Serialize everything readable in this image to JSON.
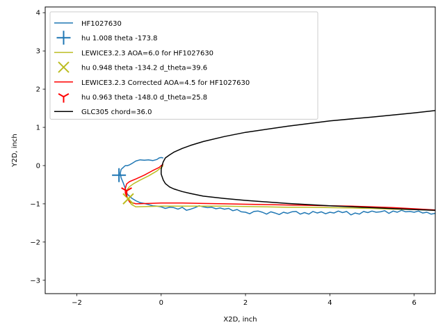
{
  "chart_data": {
    "type": "line",
    "xlabel": "X2D, inch",
    "ylabel": "Y2D, inch",
    "xlim": [
      -2.75,
      6.5
    ],
    "ylim": [
      -3.35,
      4.15
    ],
    "xticks": [
      -2,
      0,
      2,
      4,
      6
    ],
    "yticks": [
      -3,
      -2,
      -1,
      0,
      1,
      2,
      3,
      4
    ],
    "xtick_labels": [
      "−2",
      "0",
      "2",
      "4",
      "6"
    ],
    "ytick_labels": [
      "−3",
      "−2",
      "−1",
      "0",
      "1",
      "2",
      "3",
      "4"
    ],
    "grid": false,
    "legend_position": "top-left",
    "series": [
      {
        "name": "HF1027630",
        "kind": "line",
        "color": "#1f77b4",
        "x": [
          6.5,
          6.4,
          6.3,
          6.2,
          6.1,
          6.0,
          5.9,
          5.8,
          5.7,
          5.6,
          5.5,
          5.4,
          5.3,
          5.2,
          5.1,
          5.0,
          4.9,
          4.8,
          4.7,
          4.6,
          4.5,
          4.4,
          4.3,
          4.2,
          4.1,
          4.0,
          3.9,
          3.8,
          3.7,
          3.6,
          3.5,
          3.4,
          3.3,
          3.2,
          3.1,
          3.0,
          2.9,
          2.8,
          2.7,
          2.6,
          2.5,
          2.4,
          2.3,
          2.2,
          2.1,
          2.0,
          1.9,
          1.8,
          1.7,
          1.6,
          1.5,
          1.4,
          1.3,
          1.2,
          1.1,
          1.0,
          0.9,
          0.8,
          0.7,
          0.6,
          0.5,
          0.4,
          0.3,
          0.2,
          0.1,
          0.0,
          -0.1,
          -0.2,
          -0.3,
          -0.4,
          -0.5,
          -0.6,
          -0.7,
          -0.8,
          -0.85,
          -0.9,
          -0.95,
          -0.97,
          -0.95,
          -0.9,
          -0.85,
          -0.8,
          -0.75,
          -0.7,
          -0.6,
          -0.5,
          -0.4,
          -0.3,
          -0.2,
          -0.1,
          -0.05,
          0.0,
          0.05
        ],
        "y": [
          -1.25,
          -1.27,
          -1.22,
          -1.24,
          -1.19,
          -1.22,
          -1.2,
          -1.21,
          -1.17,
          -1.22,
          -1.19,
          -1.25,
          -1.18,
          -1.21,
          -1.22,
          -1.19,
          -1.23,
          -1.2,
          -1.27,
          -1.24,
          -1.29,
          -1.2,
          -1.23,
          -1.19,
          -1.24,
          -1.22,
          -1.26,
          -1.21,
          -1.24,
          -1.2,
          -1.27,
          -1.23,
          -1.27,
          -1.2,
          -1.21,
          -1.25,
          -1.22,
          -1.28,
          -1.24,
          -1.21,
          -1.27,
          -1.22,
          -1.19,
          -1.2,
          -1.26,
          -1.22,
          -1.21,
          -1.15,
          -1.18,
          -1.12,
          -1.14,
          -1.11,
          -1.13,
          -1.09,
          -1.1,
          -1.08,
          -1.05,
          -1.1,
          -1.14,
          -1.17,
          -1.09,
          -1.14,
          -1.1,
          -1.09,
          -1.12,
          -1.08,
          -1.06,
          -1.05,
          -1.02,
          -0.99,
          -0.97,
          -0.92,
          -0.85,
          -0.75,
          -0.6,
          -0.45,
          -0.32,
          -0.2,
          -0.1,
          -0.05,
          0.0,
          0.0,
          0.02,
          0.05,
          0.12,
          0.15,
          0.14,
          0.15,
          0.13,
          0.16,
          0.2,
          0.21,
          0.2
        ]
      },
      {
        "name": "hu 1.008 theta -173.8",
        "kind": "marker",
        "marker": "plus",
        "color": "#1f77b4",
        "x": [
          -1.0
        ],
        "y": [
          -0.25
        ]
      },
      {
        "name": "LEWICE3.2.3 AOA=6.0 for HF1027630",
        "kind": "line",
        "color": "#bcbd22",
        "x": [
          6.5,
          6.0,
          5.5,
          5.0,
          4.5,
          4.0,
          3.5,
          3.0,
          2.5,
          2.0,
          1.5,
          1.0,
          0.5,
          0.0,
          -0.3,
          -0.6,
          -0.7,
          -0.75,
          -0.8,
          -0.82,
          -0.8,
          -0.75,
          -0.65,
          -0.5,
          -0.3,
          -0.1,
          0.0,
          0.05
        ],
        "y": [
          -1.17,
          -1.15,
          -1.14,
          -1.12,
          -1.11,
          -1.1,
          -1.09,
          -1.09,
          -1.08,
          -1.07,
          -1.06,
          -1.06,
          -1.06,
          -1.06,
          -1.07,
          -1.08,
          -1.02,
          -0.95,
          -0.85,
          -0.72,
          -0.62,
          -0.55,
          -0.47,
          -0.38,
          -0.27,
          -0.14,
          -0.05,
          0.0
        ]
      },
      {
        "name": "hu 0.948 theta -134.2 d_theta=39.6",
        "kind": "marker",
        "marker": "x",
        "color": "#bcbd22",
        "x": [
          -0.78
        ],
        "y": [
          -0.87
        ]
      },
      {
        "name": "LEWICE3.2.3 Corrected AOA=4.5 for HF1027630",
        "kind": "line",
        "color": "#ff0000",
        "x": [
          6.5,
          6.0,
          5.5,
          5.0,
          4.5,
          4.0,
          3.5,
          3.0,
          2.5,
          2.0,
          1.5,
          1.0,
          0.5,
          0.0,
          -0.3,
          -0.6,
          -0.75,
          -0.8,
          -0.85,
          -0.85,
          -0.82,
          -0.75,
          -0.6,
          -0.4,
          -0.2,
          -0.05,
          0.0,
          0.05
        ],
        "y": [
          -1.16,
          -1.13,
          -1.1,
          -1.08,
          -1.06,
          -1.05,
          -1.04,
          -1.03,
          -1.02,
          -1.01,
          -1.0,
          -0.99,
          -0.98,
          -0.98,
          -0.99,
          -1.0,
          -0.95,
          -0.85,
          -0.72,
          -0.6,
          -0.48,
          -0.42,
          -0.35,
          -0.25,
          -0.13,
          -0.05,
          0.0,
          0.03
        ]
      },
      {
        "name": "hu 0.963 theta -148.0 d_theta=25.8",
        "kind": "marker",
        "marker": "tri_down",
        "color": "#ff0000",
        "x": [
          -0.82
        ],
        "y": [
          -0.66
        ]
      },
      {
        "name": "GLC305 chord=36.0",
        "kind": "line",
        "color": "#000000",
        "x": [
          6.5,
          6.0,
          5.0,
          4.0,
          3.0,
          2.0,
          1.5,
          1.0,
          0.7,
          0.5,
          0.3,
          0.2,
          0.1,
          0.05,
          0.0,
          0.0,
          0.02,
          0.05,
          0.1,
          0.2,
          0.3,
          0.5,
          0.7,
          1.0,
          1.5,
          2.0,
          3.0,
          4.0,
          5.0,
          6.0,
          6.5
        ],
        "y": [
          -1.17,
          -1.15,
          -1.1,
          -1.05,
          -0.99,
          -0.91,
          -0.86,
          -0.8,
          -0.73,
          -0.68,
          -0.61,
          -0.56,
          -0.47,
          -0.38,
          -0.22,
          -0.1,
          0.0,
          0.1,
          0.2,
          0.28,
          0.35,
          0.45,
          0.53,
          0.63,
          0.76,
          0.87,
          1.03,
          1.17,
          1.27,
          1.38,
          1.44
        ]
      }
    ]
  }
}
